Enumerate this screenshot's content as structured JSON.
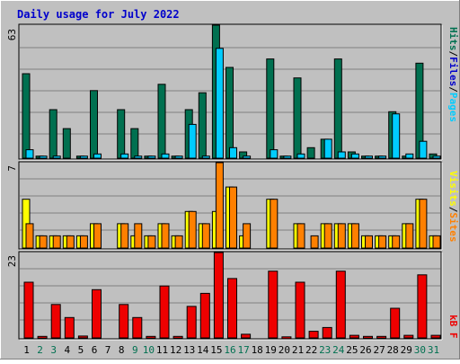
{
  "title": "Daily usage for July 2022",
  "colors": {
    "background": "#c0c0c0",
    "title": "#0000cc",
    "hits": "#007050",
    "files": "#00ccff",
    "pages": "#00ccff",
    "sites": "#ffff00",
    "visits": "#ff8000",
    "kbytes": "#ee0000",
    "weekend_day_label": "#007050",
    "weekday_label": "#000000"
  },
  "chart_data": [
    {
      "type": "bar",
      "name": "hits-files-pages",
      "categories": [
        "1",
        "2",
        "3",
        "4",
        "5",
        "6",
        "7",
        "8",
        "9",
        "10",
        "11",
        "12",
        "13",
        "14",
        "15",
        "16",
        "17",
        "18",
        "19",
        "20",
        "21",
        "22",
        "23",
        "24",
        "25",
        "26",
        "27",
        "28",
        "29",
        "30",
        "31"
      ],
      "ymax_label": "63",
      "ylim": [
        0,
        63
      ],
      "legend": [
        {
          "text": "Pages",
          "color": "#00ccff"
        },
        {
          "text": "/",
          "color": "#000000"
        },
        {
          "text": "Files",
          "color": "#0000cc"
        },
        {
          "text": "/",
          "color": "#000000"
        },
        {
          "text": "Hits",
          "color": "#007050"
        }
      ],
      "series": [
        {
          "key": "hits",
          "color": "#007050",
          "values": [
            40,
            1,
            23,
            14,
            1,
            32,
            0,
            23,
            14,
            1,
            35,
            1,
            23,
            31,
            63,
            43,
            3,
            0,
            47,
            1,
            38,
            5,
            9,
            47,
            3,
            1,
            1,
            22,
            1,
            45,
            2
          ]
        },
        {
          "key": "files",
          "color": "#00ccff",
          "values": [
            4,
            1,
            1,
            0,
            1,
            2,
            0,
            2,
            1,
            1,
            2,
            1,
            16,
            1,
            52,
            5,
            1,
            0,
            4,
            1,
            2,
            0,
            9,
            3,
            2,
            1,
            1,
            21,
            2,
            8,
            1
          ]
        }
      ]
    },
    {
      "type": "bar",
      "name": "sites-visits",
      "categories": [
        "1",
        "2",
        "3",
        "4",
        "5",
        "6",
        "7",
        "8",
        "9",
        "10",
        "11",
        "12",
        "13",
        "14",
        "15",
        "16",
        "17",
        "18",
        "19",
        "20",
        "21",
        "22",
        "23",
        "24",
        "25",
        "26",
        "27",
        "28",
        "29",
        "30",
        "31"
      ],
      "ymax_label": "7",
      "ylim": [
        0,
        7
      ],
      "legend": [
        {
          "text": "Sites",
          "color": "#ff8000"
        },
        {
          "text": "/",
          "color": "#000000"
        },
        {
          "text": "Visits",
          "color": "#ffff00"
        }
      ],
      "series": [
        {
          "key": "sites",
          "color": "#ffff00",
          "values": [
            4,
            1,
            1,
            1,
            1,
            2,
            0,
            2,
            1,
            1,
            2,
            1,
            3,
            2,
            3,
            5,
            1,
            0,
            4,
            0,
            2,
            0,
            2,
            2,
            2,
            1,
            1,
            1,
            2,
            4,
            1
          ]
        },
        {
          "key": "visits",
          "color": "#ff8000",
          "values": [
            2,
            1,
            1,
            1,
            1,
            2,
            0,
            2,
            2,
            1,
            2,
            1,
            3,
            2,
            7,
            5,
            2,
            0,
            4,
            0,
            2,
            1,
            2,
            2,
            2,
            1,
            1,
            1,
            2,
            4,
            1
          ]
        }
      ]
    },
    {
      "type": "bar",
      "name": "kbytes",
      "categories": [
        "1",
        "2",
        "3",
        "4",
        "5",
        "6",
        "7",
        "8",
        "9",
        "10",
        "11",
        "12",
        "13",
        "14",
        "15",
        "16",
        "17",
        "18",
        "19",
        "20",
        "21",
        "22",
        "23",
        "24",
        "25",
        "26",
        "27",
        "28",
        "29",
        "30",
        "31"
      ],
      "ymax_label": "23",
      "ylim": [
        0,
        23
      ],
      "legend": [
        {
          "text": "kB F",
          "color": "#ee0000"
        }
      ],
      "series": [
        {
          "key": "kbytes",
          "color": "#ee0000",
          "values": [
            15,
            0.4,
            9,
            5.5,
            0.5,
            13,
            0,
            9,
            5.5,
            0.4,
            14,
            0.4,
            8.5,
            12,
            23,
            16,
            1,
            0,
            18,
            0.3,
            15,
            1.8,
            2.8,
            18,
            0.7,
            0.4,
            0.4,
            8,
            0.7,
            17,
            0.7
          ]
        }
      ]
    }
  ],
  "days": [
    {
      "label": "1",
      "weekend": false
    },
    {
      "label": "2",
      "weekend": true
    },
    {
      "label": "3",
      "weekend": true
    },
    {
      "label": "4",
      "weekend": false
    },
    {
      "label": "5",
      "weekend": false
    },
    {
      "label": "6",
      "weekend": false
    },
    {
      "label": "7",
      "weekend": false
    },
    {
      "label": "8",
      "weekend": false
    },
    {
      "label": "9",
      "weekend": true
    },
    {
      "label": "10",
      "weekend": true
    },
    {
      "label": "11",
      "weekend": false
    },
    {
      "label": "12",
      "weekend": false
    },
    {
      "label": "13",
      "weekend": false
    },
    {
      "label": "14",
      "weekend": false
    },
    {
      "label": "15",
      "weekend": false
    },
    {
      "label": "16",
      "weekend": true
    },
    {
      "label": "17",
      "weekend": true
    },
    {
      "label": "18",
      "weekend": false
    },
    {
      "label": "19",
      "weekend": false
    },
    {
      "label": "20",
      "weekend": false
    },
    {
      "label": "21",
      "weekend": false
    },
    {
      "label": "22",
      "weekend": false
    },
    {
      "label": "23",
      "weekend": true
    },
    {
      "label": "24",
      "weekend": true
    },
    {
      "label": "25",
      "weekend": false
    },
    {
      "label": "26",
      "weekend": false
    },
    {
      "label": "27",
      "weekend": false
    },
    {
      "label": "28",
      "weekend": false
    },
    {
      "label": "29",
      "weekend": false
    },
    {
      "label": "30",
      "weekend": true
    },
    {
      "label": "31",
      "weekend": true
    }
  ]
}
